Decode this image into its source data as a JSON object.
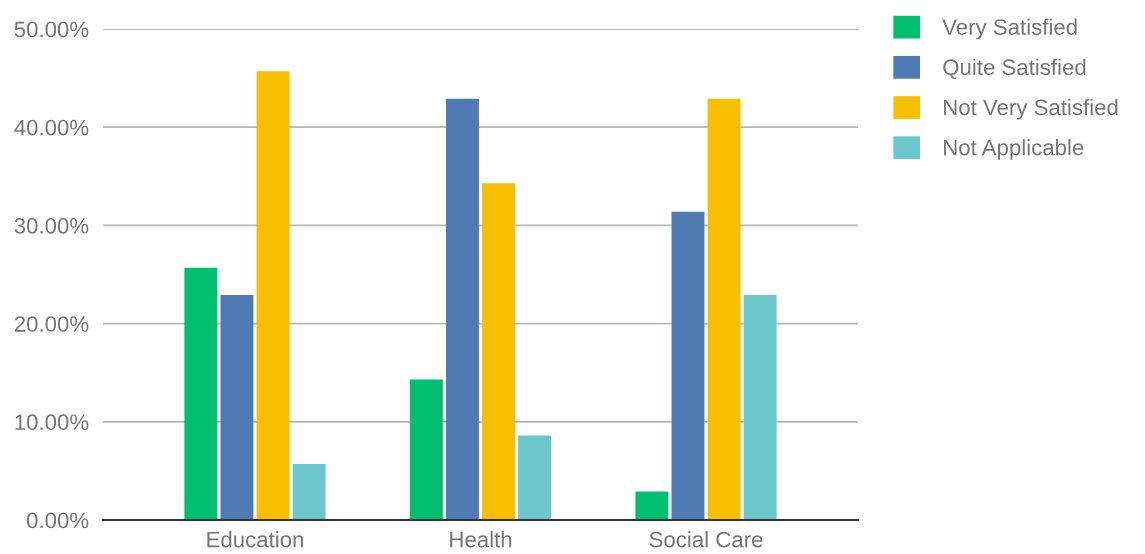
{
  "chart_data": {
    "type": "bar",
    "categories": [
      "Education",
      "Health",
      "Social Care"
    ],
    "series": [
      {
        "name": "Very Satisfied",
        "color": "#00bf6f",
        "values": [
          25.7,
          14.3,
          2.9
        ]
      },
      {
        "name": "Quite Satisfied",
        "color": "#4e7bb4",
        "values": [
          22.9,
          42.9,
          31.4
        ]
      },
      {
        "name": "Not Very Satisfied",
        "color": "#f8be00",
        "values": [
          45.7,
          34.3,
          42.9
        ]
      },
      {
        "name": "Not Applicable",
        "color": "#6cc7cc",
        "values": [
          5.7,
          8.6,
          22.9
        ]
      }
    ],
    "ylim": [
      0,
      50
    ],
    "yticks": [
      {
        "value": 0,
        "label": "0.00%"
      },
      {
        "value": 10,
        "label": "10.00%"
      },
      {
        "value": 20,
        "label": "20.00%"
      },
      {
        "value": 30,
        "label": "30.00%"
      },
      {
        "value": 40,
        "label": "40.00%"
      },
      {
        "value": 50,
        "label": "50.00%"
      }
    ],
    "grid": "y",
    "legend": "right"
  }
}
